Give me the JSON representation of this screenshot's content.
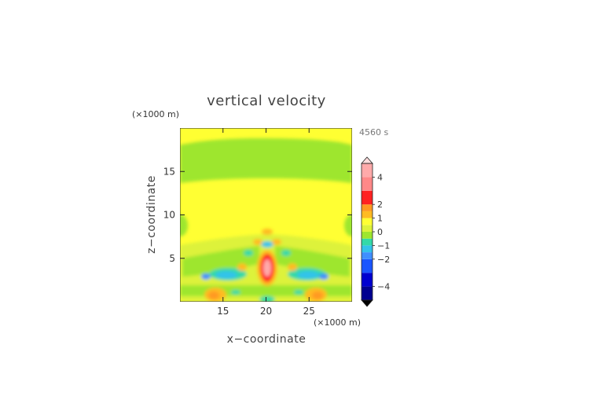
{
  "chart_data": {
    "type": "heatmap",
    "title": "vertical velocity",
    "xlabel": "x−coordinate",
    "ylabel": "z−coordinate",
    "x_unit": "(×1000 m)",
    "y_unit": "(×1000 m)",
    "time_label": "4560 s",
    "xlim": [
      10,
      30
    ],
    "ylim": [
      0,
      20
    ],
    "x_ticks": [
      "15",
      "20",
      "25"
    ],
    "x_tick_values": [
      15,
      20,
      25
    ],
    "y_ticks": [
      "5",
      "10",
      "15"
    ],
    "y_tick_values": [
      5,
      10,
      15
    ],
    "colorbar": {
      "range": [
        -5,
        5
      ],
      "labels": [
        "4",
        "2",
        "1",
        "0",
        "−1",
        "−2",
        "−4"
      ],
      "label_values": [
        4,
        2,
        1,
        0,
        -1,
        -2,
        -4
      ],
      "extend": "both"
    },
    "background_color": "#ffff33",
    "colors": {
      "yellow": "#ffff33",
      "yellow_green": "#ddf23a",
      "green": "#9ee62e",
      "light_green": "#c3ee3a",
      "teal": "#33d9a8",
      "cyan": "#33c3ea",
      "blue": "#3f8fff",
      "orange": "#ffbb22",
      "dark_orange": "#ff9922",
      "red": "#ff2222",
      "pink": "#ffaaaa"
    }
  }
}
